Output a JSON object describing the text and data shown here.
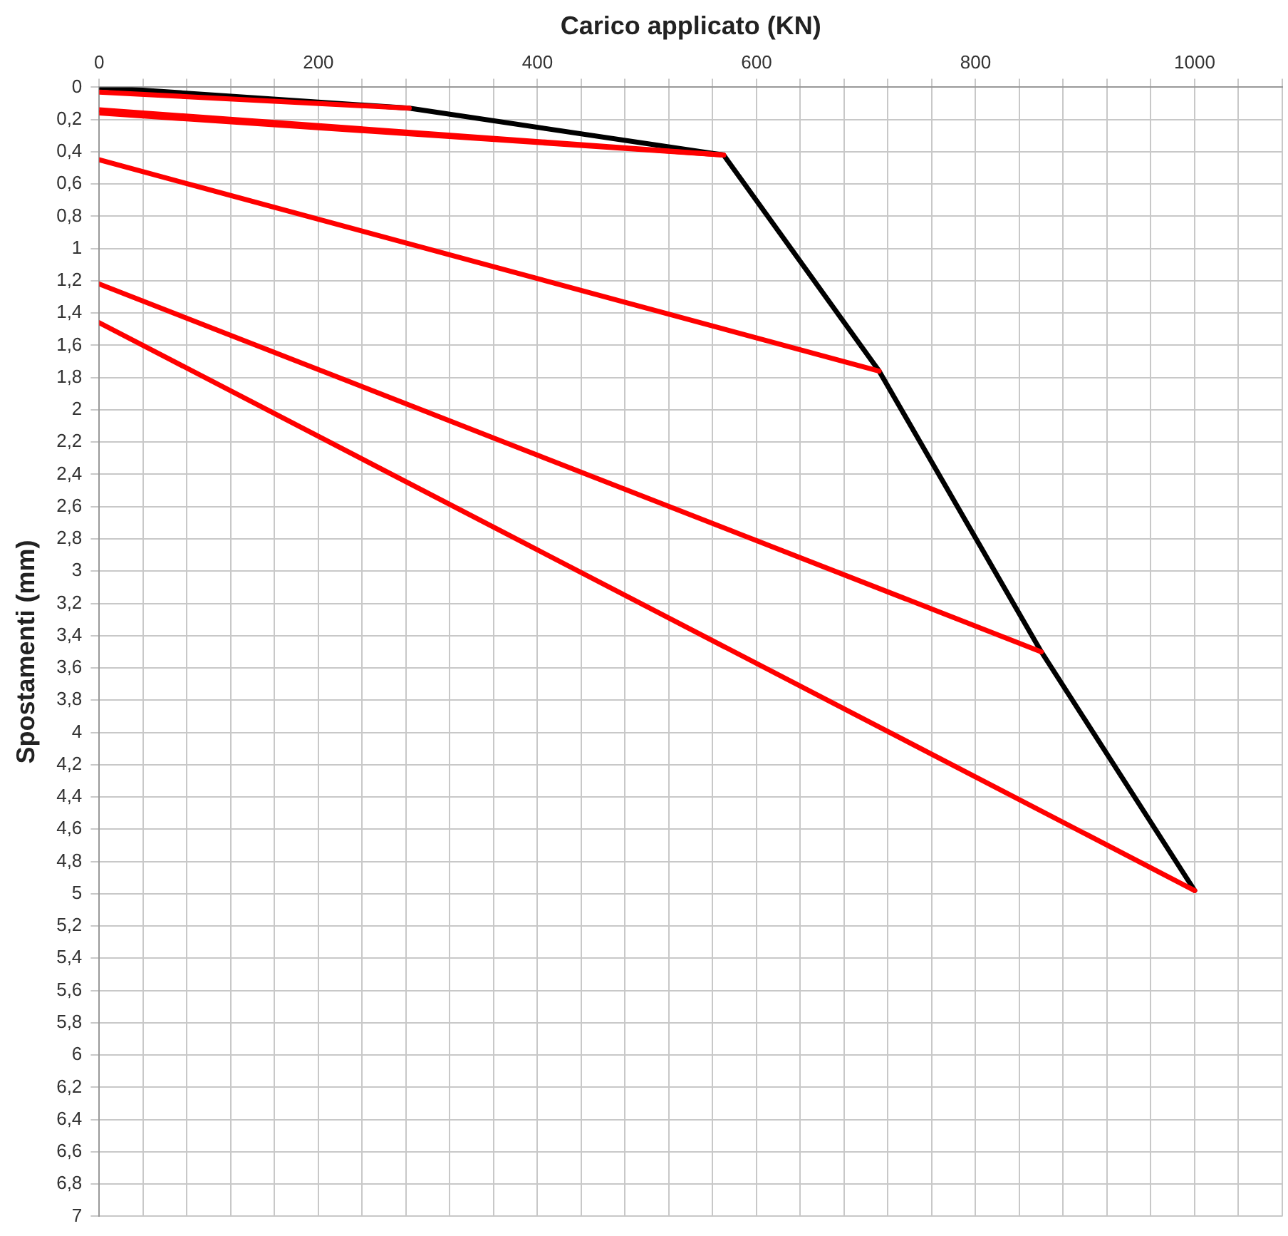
{
  "chart_data": {
    "type": "line",
    "xlabel": "Carico applicato (KN)",
    "ylabel": "Spostamenti (mm)",
    "xlim": [
      0,
      1080
    ],
    "xticks": [
      0,
      {
        "value": 40,
        "label": null
      },
      {
        "value": 80,
        "label": null
      },
      {
        "value": 120,
        "label": null
      },
      {
        "value": 160,
        "label": null
      },
      200,
      {
        "value": 240,
        "label": null
      },
      {
        "value": 280,
        "label": null
      },
      {
        "value": 320,
        "label": null
      },
      {
        "value": 360,
        "label": null
      },
      400,
      {
        "value": 440,
        "label": null
      },
      {
        "value": 480,
        "label": null
      },
      {
        "value": 520,
        "label": null
      },
      {
        "value": 560,
        "label": null
      },
      600,
      {
        "value": 640,
        "label": null
      },
      {
        "value": 680,
        "label": null
      },
      {
        "value": 720,
        "label": null
      },
      {
        "value": 760,
        "label": null
      },
      800,
      {
        "value": 840,
        "label": null
      },
      {
        "value": 880,
        "label": null
      },
      {
        "value": 920,
        "label": null
      },
      {
        "value": 960,
        "label": null
      },
      1000,
      {
        "value": 1040,
        "label": null
      },
      {
        "value": 1080,
        "label": null
      }
    ],
    "ylim": [
      7,
      0
    ],
    "yticks": [
      0,
      {
        "value": 0.2,
        "label": "0,2"
      },
      {
        "value": 0.4,
        "label": "0,4"
      },
      {
        "value": 0.6,
        "label": "0,6"
      },
      {
        "value": 0.8,
        "label": "0,8"
      },
      1,
      {
        "value": 1.2,
        "label": "1,2"
      },
      {
        "value": 1.4,
        "label": "1,4"
      },
      {
        "value": 1.6,
        "label": "1,6"
      },
      {
        "value": 1.8,
        "label": "1,8"
      },
      2,
      {
        "value": 2.2,
        "label": "2,2"
      },
      {
        "value": 2.4,
        "label": "2,4"
      },
      {
        "value": 2.6,
        "label": "2,6"
      },
      {
        "value": 2.8,
        "label": "2,8"
      },
      3,
      {
        "value": 3.2,
        "label": "3,2"
      },
      {
        "value": 3.4,
        "label": "3,4"
      },
      {
        "value": 3.6,
        "label": "3,6"
      },
      {
        "value": 3.8,
        "label": "3,8"
      },
      4,
      {
        "value": 4.2,
        "label": "4,2"
      },
      {
        "value": 4.4,
        "label": "4,4"
      },
      {
        "value": 4.6,
        "label": "4,6"
      },
      {
        "value": 4.8,
        "label": "4,8"
      },
      5,
      {
        "value": 5.2,
        "label": "5,2"
      },
      {
        "value": 5.4,
        "label": "5,4"
      },
      {
        "value": 5.6,
        "label": "5,6"
      },
      {
        "value": 5.8,
        "label": "5,8"
      },
      6,
      {
        "value": 6.2,
        "label": "6,2"
      },
      {
        "value": 6.4,
        "label": "6,4"
      },
      {
        "value": 6.6,
        "label": "6,6"
      },
      {
        "value": 6.8,
        "label": "6,8"
      },
      7
    ],
    "grid": true,
    "marker": "none",
    "series": [
      {
        "color": "#ff0000",
        "x": [
          0,
          283
        ],
        "values": [
          0.03,
          0.13
        ]
      },
      {
        "color": "#ff0000",
        "x": [
          0,
          570
        ],
        "values": [
          0.14,
          0.42
        ]
      },
      {
        "color": "#ff0000",
        "x": [
          0,
          570
        ],
        "values": [
          0.16,
          0.42
        ]
      },
      {
        "color": "#ff0000",
        "x": [
          0,
          712
        ],
        "values": [
          0.45,
          1.76
        ]
      },
      {
        "color": "#ff0000",
        "x": [
          0,
          860
        ],
        "values": [
          1.22,
          3.5
        ]
      },
      {
        "color": "#ff0000",
        "x": [
          0,
          1000
        ],
        "values": [
          1.46,
          4.98
        ]
      },
      {
        "color": "#000000",
        "x": [
          0,
          283,
          570,
          712,
          860,
          1000
        ],
        "values": [
          0,
          0.13,
          0.42,
          1.76,
          3.5,
          4.98
        ]
      }
    ]
  }
}
